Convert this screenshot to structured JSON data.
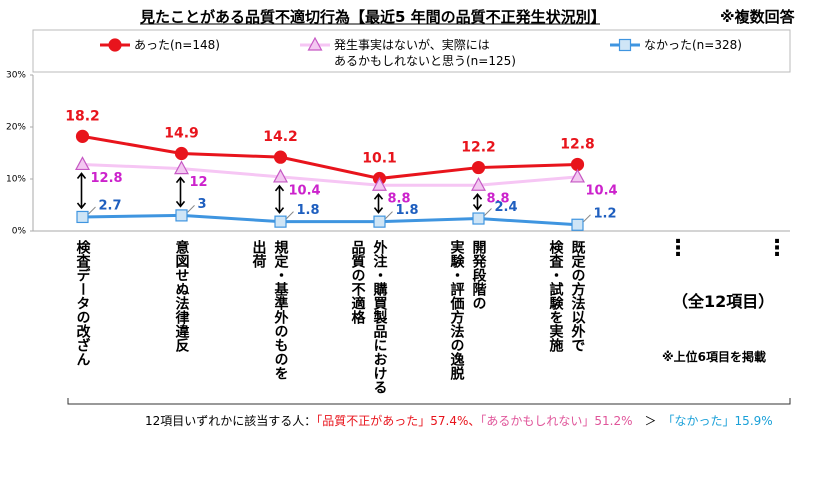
{
  "chart_data": {
    "type": "line",
    "title": "見たことがある品質不適切行為【最近5 年間の品質不正発生状況別】",
    "note": "※複数回答",
    "categories": [
      "検査データの改ざん",
      "意図せぬ法律違反",
      "規定・基準外のものを\n出荷",
      "外注・購買製品における\n品質の不適格",
      "開発段階の\n実験・評価方法の逸脱",
      "既定の方法以外で\n検査・試験を実施"
    ],
    "series": [
      {
        "name": "あった(n=148)",
        "color": "#e8141c",
        "marker": "circle",
        "marker_fill": "#e8141c",
        "label_color": "#e8141c",
        "values": [
          18.2,
          14.9,
          14.2,
          10.1,
          12.2,
          12.8
        ]
      },
      {
        "name": "発生事実はないが、実際には\nあるかもしれないと思う(n=125)",
        "color": "#f6c6f4",
        "marker": "triangle",
        "marker_fill": "#f3c8f1",
        "marker_stroke": "#c659c4",
        "label_color": "#cc22cc",
        "values": [
          12.8,
          12.0,
          10.4,
          8.8,
          8.8,
          10.4
        ]
      },
      {
        "name": "なかった(n=328)",
        "color": "#3f95e0",
        "marker": "square",
        "marker_fill": "#cfe5f6",
        "marker_stroke": "#3f95e0",
        "label_color": "#1f5fbf",
        "values": [
          2.7,
          3.0,
          1.8,
          1.8,
          2.4,
          1.2
        ]
      }
    ],
    "ylim": [
      0,
      30
    ],
    "yticks": [
      {
        "value": 0,
        "label": "0%"
      },
      {
        "value": 10,
        "label": "10%"
      },
      {
        "value": 20,
        "label": "20%"
      },
      {
        "value": 30,
        "label": "30%"
      }
    ],
    "annotations": {
      "ellipsis": "⋮",
      "total": "（全12項目）",
      "footnote": "※上位6項目を掲載",
      "summary": [
        {
          "text": "12項目いずれかに該当する人：",
          "color": "#000000"
        },
        {
          "text": "「品質不正があった」57.4%、",
          "color": "#e8141c"
        },
        {
          "text": "「あるかもしれない」51.2%",
          "color": "#e0559a"
        },
        {
          "text": "　＞　",
          "color": "#000000"
        },
        {
          "text": "「なかった」15.9%",
          "color": "#1aa0d8"
        }
      ]
    }
  }
}
